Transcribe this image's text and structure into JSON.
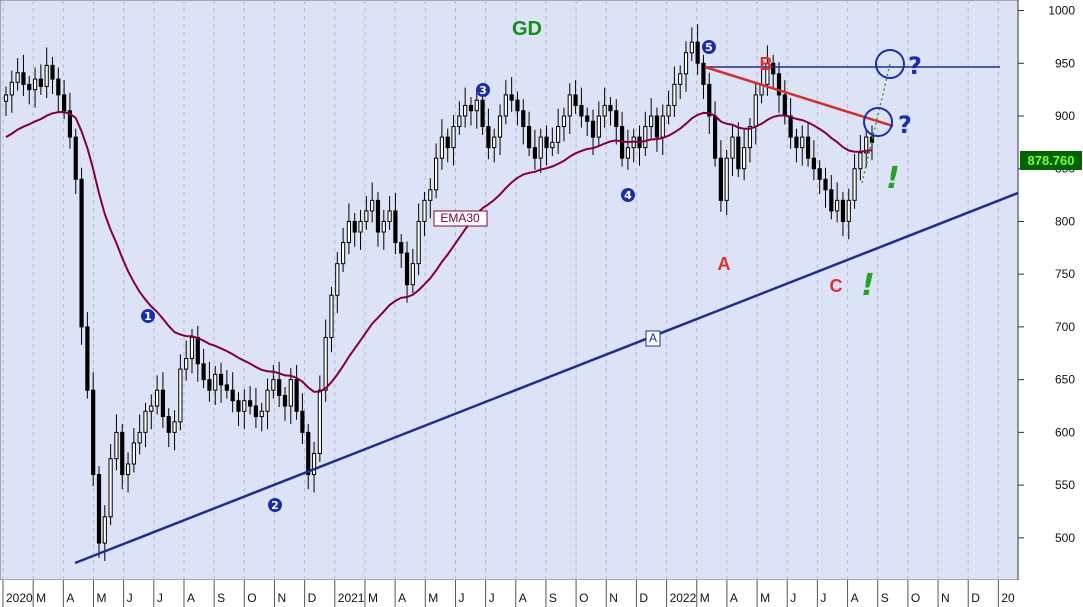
{
  "colors": {
    "plot_bg": "#dde3f6",
    "grid": "#b8bbc6",
    "candle": "#000000",
    "ema": "#800040",
    "trendline": "#1f2f8c",
    "resistance": "#d03030",
    "wave_marker": "#1a2ea8",
    "abc_label": "#e03030",
    "exclaim": "#2aa02a",
    "price_tag_bg": "#006400",
    "price_tag_text": "#7cff3a"
  },
  "chart_data": {
    "type": "candlestick",
    "title": "GD",
    "x_labels": [
      "2020",
      "M",
      "A",
      "M",
      "J",
      "J",
      "A",
      "S",
      "O",
      "N",
      "D",
      "2021",
      "M",
      "A",
      "M",
      "J",
      "J",
      "A",
      "S",
      "O",
      "N",
      "D",
      "2022",
      "M",
      "A",
      "M",
      "J",
      "J",
      "A",
      "S",
      "O",
      "N",
      "D",
      "20"
    ],
    "ylim": [
      460,
      1010
    ],
    "y_ticks": [
      500,
      550,
      600,
      650,
      700,
      750,
      800,
      850,
      900,
      950,
      1000
    ],
    "grid": true,
    "last_price_label": "878.760",
    "ema_label": "EMA30",
    "trendline_label": "A",
    "wave_labels": [
      "1",
      "2",
      "3",
      "4",
      "5"
    ],
    "abc_labels": [
      "A",
      "B",
      "C"
    ],
    "question_marks": [
      "?",
      "?"
    ],
    "exclamations": [
      "!",
      "!"
    ],
    "closes": [
      920,
      932,
      941,
      930,
      925,
      935,
      928,
      948,
      935,
      920,
      905,
      880,
      840,
      700,
      640,
      560,
      495,
      520,
      575,
      600,
      560,
      570,
      590,
      600,
      620,
      625,
      640,
      615,
      600,
      610,
      660,
      670,
      690,
      665,
      650,
      640,
      655,
      645,
      640,
      630,
      620,
      630,
      625,
      615,
      620,
      640,
      650,
      635,
      625,
      650,
      620,
      600,
      560,
      580,
      640,
      690,
      730,
      760,
      780,
      800,
      790,
      800,
      810,
      820,
      790,
      800,
      810,
      780,
      770,
      740,
      760,
      800,
      820,
      830,
      860,
      880,
      870,
      890,
      900,
      910,
      905,
      915,
      890,
      870,
      880,
      900,
      920,
      915,
      905,
      890,
      870,
      860,
      880,
      870,
      875,
      890,
      900,
      920,
      910,
      900,
      895,
      880,
      900,
      910,
      905,
      890,
      860,
      870,
      880,
      870,
      890,
      900,
      880,
      900,
      910,
      930,
      940,
      960,
      970,
      950,
      930,
      900,
      860,
      820,
      860,
      880,
      850,
      870,
      890,
      920,
      930,
      950,
      940,
      920,
      900,
      880,
      870,
      880,
      860,
      850,
      840,
      830,
      810,
      820,
      800,
      820,
      850,
      865,
      880,
      875
    ]
  }
}
